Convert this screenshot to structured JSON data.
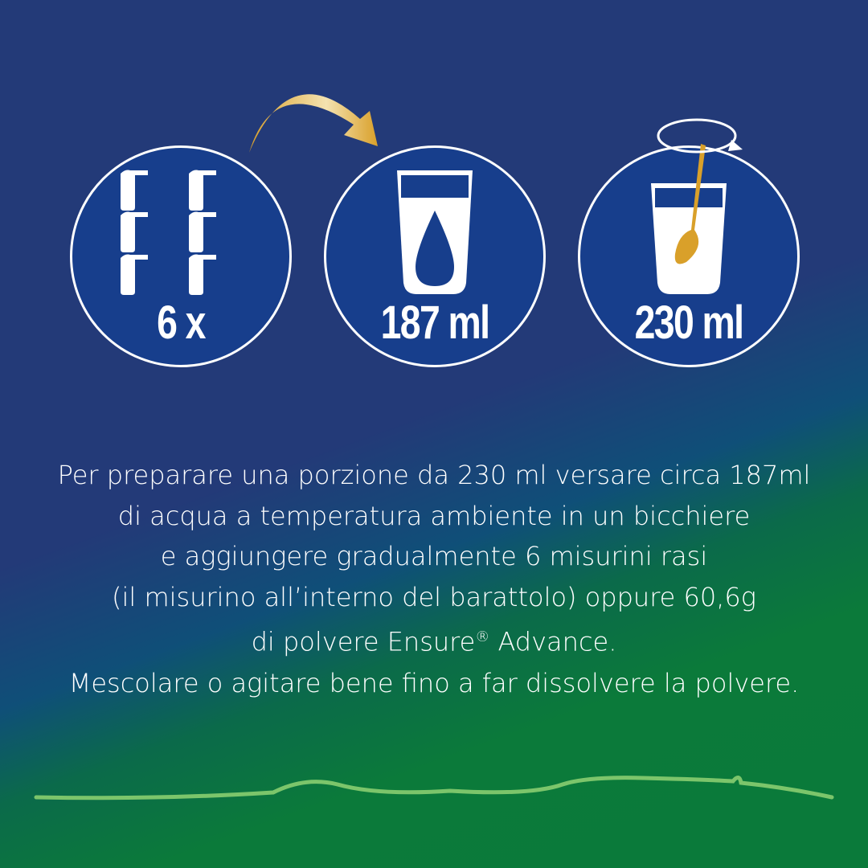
{
  "steps": [
    {
      "label": "6 x",
      "icon": "measuring-scoops-icon"
    },
    {
      "label": "187 ml",
      "icon": "glass-water-drop-icon"
    },
    {
      "label": "230 ml",
      "icon": "glass-spoon-stir-icon"
    }
  ],
  "instructions": {
    "line1": "Per preparare una porzione da 230 ml versare circa 187ml",
    "line2": "di acqua a temperatura ambiente in un bicchiere",
    "line3": "e aggiungere gradualmente 6 misurini rasi",
    "line4": "(il misurino all’interno del barattolo) oppure 60,6g",
    "line5_a": "di polvere Ensure",
    "line5_reg": "®",
    "line5_b": " Advance.",
    "line6": "Mescolare o agitare bene fino a far dissolvere la polvere."
  },
  "colors": {
    "navy": "#233a78",
    "circle": "#173e8c",
    "gold": "#d9a02a",
    "green": "#0a7a3a",
    "wave": "#7cc56b"
  }
}
